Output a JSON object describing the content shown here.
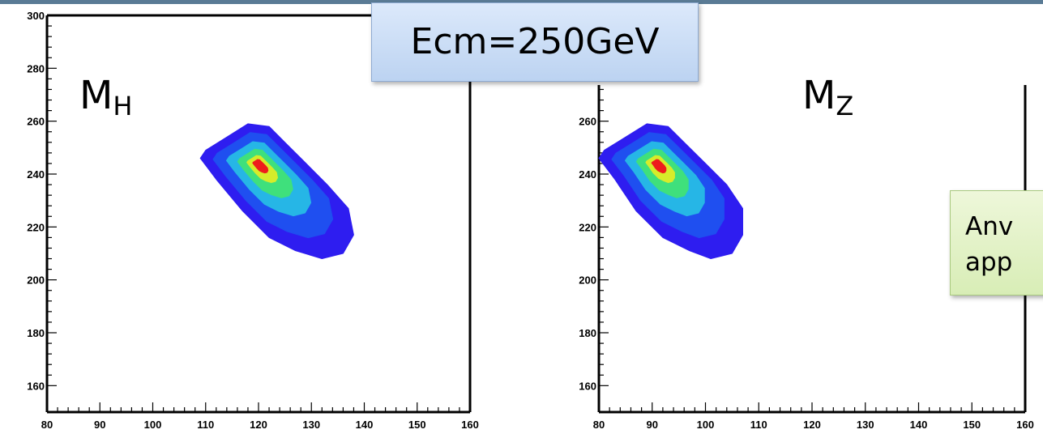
{
  "chart_data": [
    {
      "type": "heatmap",
      "panel_label": {
        "main": "M",
        "sub": "H"
      },
      "xlim": [
        80,
        160
      ],
      "ylim": [
        150,
        300
      ],
      "x_ticks": [
        "80",
        "90",
        "100",
        "110",
        "120",
        "130",
        "140",
        "150",
        "160"
      ],
      "y_ticks": [
        "160",
        "180",
        "200",
        "220",
        "240",
        "260",
        "280",
        "300"
      ],
      "peak": {
        "x": 120,
        "y": 244
      },
      "region_outline": [
        [
          110,
          249
        ],
        [
          114,
          254
        ],
        [
          118,
          259
        ],
        [
          122,
          258
        ],
        [
          125,
          252
        ],
        [
          129,
          244
        ],
        [
          133,
          236
        ],
        [
          137,
          227
        ],
        [
          138,
          217
        ],
        [
          136,
          210
        ],
        [
          132,
          208
        ],
        [
          127,
          211
        ],
        [
          122,
          216
        ],
        [
          117,
          226
        ],
        [
          112,
          238
        ],
        [
          109,
          246
        ]
      ]
    },
    {
      "type": "heatmap",
      "panel_label": {
        "main": "M",
        "sub": "Z"
      },
      "xlim": [
        80,
        160
      ],
      "ylim": [
        150,
        300
      ],
      "x_ticks": [
        "80",
        "90",
        "100",
        "110",
        "120",
        "130",
        "140",
        "150",
        "160"
      ],
      "y_ticks": [
        "160",
        "180",
        "200",
        "220",
        "240",
        "260"
      ],
      "peak": {
        "x": 91,
        "y": 244
      },
      "region_outline": [
        [
          81,
          249
        ],
        [
          85,
          254
        ],
        [
          89,
          259
        ],
        [
          93,
          258
        ],
        [
          96,
          252
        ],
        [
          100,
          244
        ],
        [
          104,
          236
        ],
        [
          107,
          227
        ],
        [
          107,
          217
        ],
        [
          105,
          210
        ],
        [
          101,
          208
        ],
        [
          97,
          211
        ],
        [
          92,
          216
        ],
        [
          87,
          226
        ],
        [
          83,
          238
        ],
        [
          80,
          246
        ]
      ]
    }
  ],
  "callouts": {
    "ecm": "Ecm=250GeV",
    "anno_line1": "Anv",
    "anno_line2": "app"
  },
  "colors": {
    "outer": "#2e1df0",
    "mid": "#26b6e6",
    "inner": "#3fe07c",
    "core": "#d6ec2a",
    "peak": "#ee1c1c",
    "topbar": "#5a7b95"
  }
}
